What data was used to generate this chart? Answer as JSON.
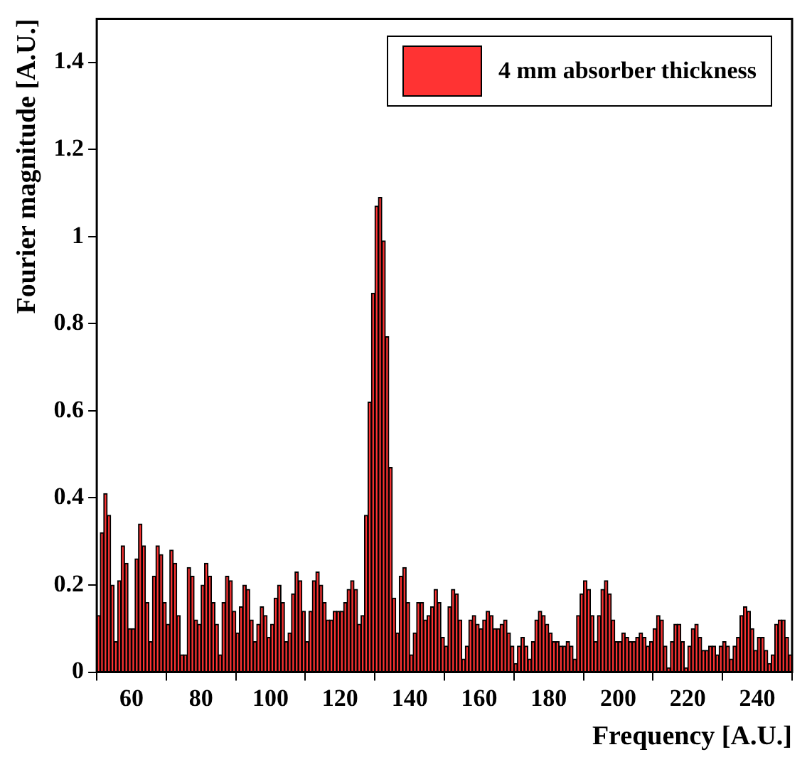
{
  "chart_data": {
    "type": "histogram",
    "xlabel": "Frequency [A.U.]",
    "ylabel": "Fourier magnitude [A.U.]",
    "bins": [
      50,
      51,
      52,
      53,
      54,
      55,
      56,
      57,
      58,
      59,
      60,
      61,
      62,
      63,
      64,
      65,
      66,
      67,
      68,
      69,
      70,
      71,
      72,
      73,
      74,
      75,
      76,
      77,
      78,
      79,
      80,
      81,
      82,
      83,
      84,
      85,
      86,
      87,
      88,
      89,
      90,
      91,
      92,
      93,
      94,
      95,
      96,
      97,
      98,
      99,
      100,
      101,
      102,
      103,
      104,
      105,
      106,
      107,
      108,
      109,
      110,
      111,
      112,
      113,
      114,
      115,
      116,
      117,
      118,
      119,
      120,
      121,
      122,
      123,
      124,
      125,
      126,
      127,
      128,
      129,
      130,
      131,
      132,
      133,
      134,
      135,
      136,
      137,
      138,
      139,
      140,
      141,
      142,
      143,
      144,
      145,
      146,
      147,
      148,
      149,
      150,
      151,
      152,
      153,
      154,
      155,
      156,
      157,
      158,
      159,
      160,
      161,
      162,
      163,
      164,
      165,
      166,
      167,
      168,
      169,
      170,
      171,
      172,
      173,
      174,
      175,
      176,
      177,
      178,
      179,
      180,
      181,
      182,
      183,
      184,
      185,
      186,
      187,
      188,
      189,
      190,
      191,
      192,
      193,
      194,
      195,
      196,
      197,
      198,
      199,
      200,
      201,
      202,
      203,
      204,
      205,
      206,
      207,
      208,
      209,
      210,
      211,
      212,
      213,
      214,
      215,
      216,
      217,
      218,
      219,
      220,
      221,
      222,
      223,
      224,
      225,
      226,
      227,
      228,
      229,
      230,
      231,
      232,
      233,
      234,
      235,
      236,
      237,
      238,
      239,
      240,
      241,
      242,
      243,
      244,
      245,
      246,
      247,
      248,
      249,
      250
    ],
    "series": [
      {
        "name": "4 mm absorber thickness",
        "color": "#ff3333",
        "values": [
          0.13,
          0.32,
          0.41,
          0.36,
          0.2,
          0.07,
          0.21,
          0.29,
          0.25,
          0.1,
          0.1,
          0.26,
          0.34,
          0.29,
          0.16,
          0.07,
          0.22,
          0.29,
          0.27,
          0.16,
          0.11,
          0.28,
          0.25,
          0.13,
          0.04,
          0.04,
          0.24,
          0.22,
          0.12,
          0.11,
          0.2,
          0.25,
          0.22,
          0.16,
          0.11,
          0.04,
          0.16,
          0.22,
          0.21,
          0.14,
          0.09,
          0.15,
          0.2,
          0.19,
          0.12,
          0.07,
          0.11,
          0.15,
          0.13,
          0.08,
          0.11,
          0.17,
          0.2,
          0.16,
          0.07,
          0.09,
          0.18,
          0.23,
          0.21,
          0.14,
          0.07,
          0.14,
          0.21,
          0.23,
          0.2,
          0.16,
          0.12,
          0.12,
          0.14,
          0.14,
          0.14,
          0.16,
          0.19,
          0.21,
          0.19,
          0.11,
          0.13,
          0.36,
          0.62,
          0.87,
          1.07,
          1.09,
          0.99,
          0.77,
          0.47,
          0.17,
          0.09,
          0.22,
          0.24,
          0.16,
          0.04,
          0.09,
          0.16,
          0.16,
          0.12,
          0.13,
          0.15,
          0.19,
          0.16,
          0.08,
          0.06,
          0.15,
          0.19,
          0.18,
          0.12,
          0.03,
          0.06,
          0.12,
          0.13,
          0.11,
          0.1,
          0.12,
          0.14,
          0.13,
          0.1,
          0.1,
          0.11,
          0.12,
          0.09,
          0.06,
          0.02,
          0.06,
          0.08,
          0.06,
          0.03,
          0.07,
          0.12,
          0.14,
          0.13,
          0.11,
          0.09,
          0.07,
          0.07,
          0.06,
          0.06,
          0.07,
          0.06,
          0.03,
          0.13,
          0.18,
          0.21,
          0.19,
          0.13,
          0.07,
          0.13,
          0.19,
          0.21,
          0.18,
          0.12,
          0.07,
          0.07,
          0.09,
          0.08,
          0.07,
          0.07,
          0.08,
          0.09,
          0.08,
          0.06,
          0.07,
          0.1,
          0.13,
          0.12,
          0.06,
          0.01,
          0.07,
          0.11,
          0.11,
          0.07,
          0.01,
          0.06,
          0.1,
          0.11,
          0.08,
          0.05,
          0.05,
          0.06,
          0.06,
          0.04,
          0.06,
          0.07,
          0.06,
          0.03,
          0.06,
          0.08,
          0.13,
          0.15,
          0.14,
          0.1,
          0.05,
          0.08,
          0.08,
          0.05,
          0.02,
          0.04,
          0.11,
          0.12,
          0.12,
          0.08,
          0.04
        ]
      }
    ],
    "xlim": [
      50,
      250
    ],
    "xticks": [
      60,
      80,
      100,
      120,
      140,
      160,
      180,
      200,
      220,
      240
    ],
    "ylim": [
      0,
      1.5
    ],
    "yticks": [
      0,
      0.2,
      0.4,
      0.6,
      0.8,
      1,
      1.2,
      1.4
    ],
    "grid": false,
    "legend": "top right"
  }
}
